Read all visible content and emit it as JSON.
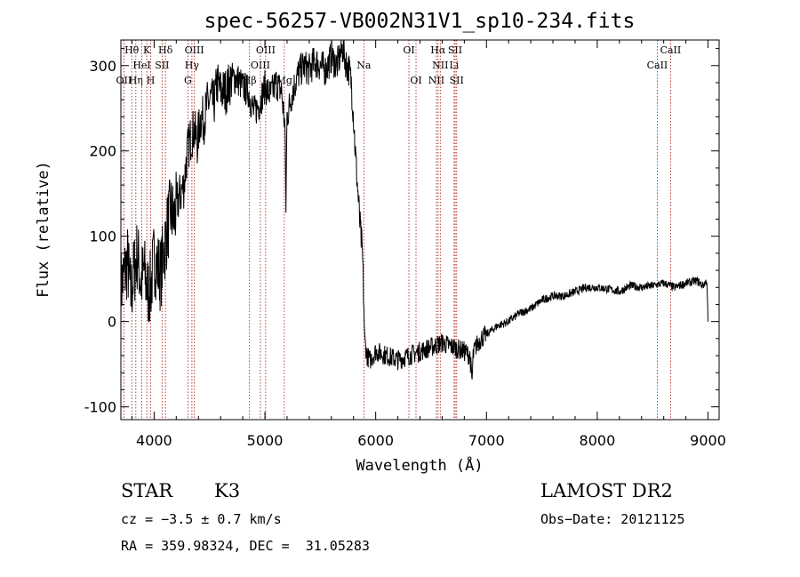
{
  "chart_data": {
    "type": "line",
    "title": "spec-56257-VB002N31V1_sp10-234.fits",
    "xlabel": "Wavelength (Å)",
    "ylabel": "Flux (relative)",
    "xlim": [
      3700,
      9100
    ],
    "ylim": [
      -115,
      330
    ],
    "xticks": [
      4000,
      5000,
      6000,
      7000,
      8000,
      9000
    ],
    "yticks": [
      -100,
      0,
      100,
      200,
      300
    ],
    "grid": false,
    "line_color": "#000000",
    "marker_color": "#a01010",
    "lines": [
      {
        "label": "Hθ",
        "wavelength": 3798,
        "row": 1
      },
      {
        "label": "OII",
        "wavelength": 3727,
        "row": 3
      },
      {
        "label": "Hη",
        "wavelength": 3835,
        "row": 3
      },
      {
        "label": "HeI",
        "wavelength": 3889,
        "row": 2
      },
      {
        "label": "K",
        "wavelength": 3934,
        "row": 1
      },
      {
        "label": "H",
        "wavelength": 3969,
        "row": 3
      },
      {
        "label": "SII",
        "wavelength": 4072,
        "row": 2
      },
      {
        "label": "Hδ",
        "wavelength": 4102,
        "row": 1
      },
      {
        "label": "G",
        "wavelength": 4305,
        "row": 3
      },
      {
        "label": "Hγ",
        "wavelength": 4341,
        "row": 2
      },
      {
        "label": "OIII",
        "wavelength": 4363,
        "row": 1
      },
      {
        "label": "Hβ",
        "wavelength": 4861,
        "row": 3
      },
      {
        "label": "OIII",
        "wavelength": 4959,
        "row": 2
      },
      {
        "label": "OIII",
        "wavelength": 5007,
        "row": 1
      },
      {
        "label": "Mg",
        "wavelength": 5175,
        "row": 3
      },
      {
        "label": "Na",
        "wavelength": 5893,
        "row": 2
      },
      {
        "label": "OI",
        "wavelength": 6300,
        "row": 1
      },
      {
        "label": "OI",
        "wavelength": 6364,
        "row": 3
      },
      {
        "label": "NII",
        "wavelength": 6548,
        "row": 3
      },
      {
        "label": "Hα",
        "wavelength": 6563,
        "row": 1
      },
      {
        "label": "NII",
        "wavelength": 6583,
        "row": 2
      },
      {
        "label": "Li",
        "wavelength": 6708,
        "row": 2
      },
      {
        "label": "SII",
        "wavelength": 6717,
        "row": 1
      },
      {
        "label": "SII",
        "wavelength": 6731,
        "row": 3
      },
      {
        "label": "CaII",
        "wavelength": 8542,
        "row": 2
      },
      {
        "label": "CaII",
        "wavelength": 8662,
        "row": 1
      }
    ],
    "series": [
      {
        "x": [
          3700,
          3730,
          3760,
          3790,
          3820,
          3850,
          3880,
          3910,
          3940,
          3970,
          4000,
          4030,
          4060,
          4090,
          4120,
          4150,
          4180,
          4210,
          4240,
          4270,
          4300,
          4330,
          4360,
          4390,
          4420,
          4450,
          4480,
          4510,
          4540,
          4570,
          4600,
          4650,
          4700,
          4750,
          4800,
          4850,
          4900,
          4950,
          5000,
          5050,
          5100,
          5150,
          5180,
          5190,
          5200,
          5250,
          5300,
          5350,
          5400,
          5450,
          5500,
          5550,
          5600,
          5650,
          5700,
          5720,
          5740,
          5760,
          5780,
          5800,
          5820,
          5840,
          5860,
          5880,
          5890,
          5900,
          5920,
          5950,
          6000,
          6100,
          6200,
          6300,
          6400,
          6500,
          6600,
          6700,
          6800,
          6850,
          6870,
          6880,
          6900,
          6950,
          7000,
          7100,
          7200,
          7300,
          7400,
          7500,
          7600,
          7700,
          7800,
          7900,
          8000,
          8100,
          8200,
          8300,
          8400,
          8500,
          8600,
          8700,
          8800,
          8900,
          8950,
          8990,
          9000
        ],
        "y": [
          40,
          55,
          70,
          30,
          60,
          80,
          45,
          60,
          35,
          40,
          75,
          65,
          55,
          85,
          110,
          130,
          120,
          140,
          150,
          160,
          200,
          215,
          225,
          210,
          240,
          235,
          255,
          260,
          255,
          280,
          270,
          270,
          285,
          285,
          275,
          270,
          245,
          255,
          275,
          265,
          280,
          270,
          230,
          135,
          240,
          270,
          290,
          300,
          295,
          305,
          300,
          295,
          310,
          300,
          320,
          310,
          300,
          295,
          280,
          240,
          190,
          150,
          110,
          80,
          35,
          -20,
          -40,
          -45,
          -35,
          -40,
          -45,
          -40,
          -35,
          -30,
          -25,
          -30,
          -35,
          -40,
          -70,
          -40,
          -30,
          -20,
          -15,
          -5,
          0,
          10,
          15,
          25,
          30,
          30,
          35,
          40,
          40,
          38,
          35,
          42,
          40,
          42,
          45,
          40,
          45,
          48,
          42,
          48,
          0
        ]
      }
    ]
  },
  "info": {
    "object_class": "STAR",
    "subclass": "K3",
    "survey": "LAMOST DR2",
    "cz": "cz = −3.5 ± 0.7 km/s",
    "obs_date": "Obs−Date: 20121125",
    "coords": "RA = 359.98324, DEC =  31.05283"
  }
}
